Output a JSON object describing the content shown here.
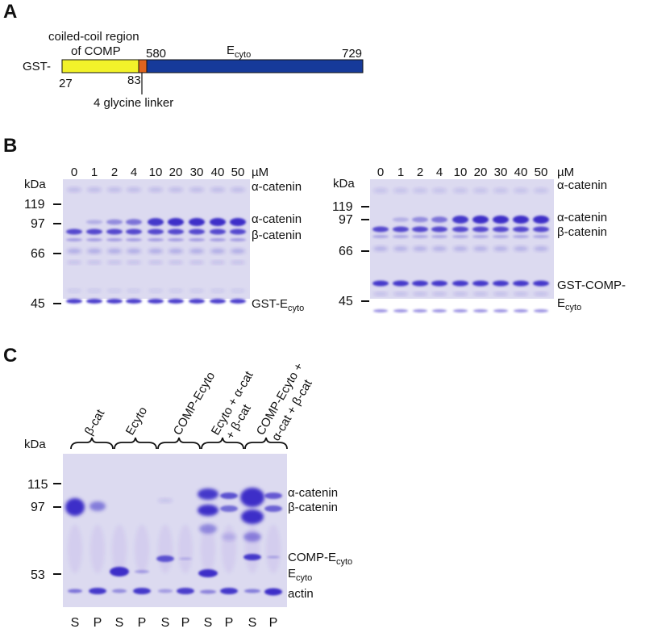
{
  "panel_a": {
    "label": "A",
    "gst": "GST-",
    "coiled_coil_line1": "coiled-coil region",
    "coiled_coil_line2": "of COMP",
    "ecyto_main": "E",
    "ecyto_sub": "cyto",
    "n580": "580",
    "n729": "729",
    "n27": "27",
    "n83": "83",
    "linker": "4 glycine linker",
    "colors": {
      "coiled_coil": "#f2f22a",
      "linker": "#e0641e",
      "ecyto": "#163a9a"
    }
  },
  "panel_b": {
    "label": "B",
    "kda": "kDa",
    "unit": "µM",
    "titrant": "α-catenin",
    "concentrations": [
      "0",
      "1",
      "2",
      "4",
      "10",
      "20",
      "30",
      "40",
      "50"
    ],
    "markers": [
      "119",
      "97",
      "66",
      "45"
    ],
    "alpha_label": "α-catenin",
    "beta_label": "β-catenin",
    "left_construct_main": "GST-E",
    "left_construct_sub": "cyto",
    "right_construct_line1": "GST-COMP-",
    "right_construct_main": "E",
    "right_construct_sub": "cyto",
    "alpha_band_intensity": [
      0.0,
      0.25,
      0.45,
      0.6,
      0.95,
      1.0,
      1.0,
      1.0,
      1.0
    ]
  },
  "panel_c": {
    "label": "C",
    "kda": "kDa",
    "markers": [
      "115",
      "97",
      "53"
    ],
    "groups": [
      {
        "line1": "β-cat",
        "line2": ""
      },
      {
        "line1": "Ecyto",
        "line2": ""
      },
      {
        "line1": "COMP-Ecyto",
        "line2": ""
      },
      {
        "line1": "Ecyto + α-cat",
        "line2": "+ β-cat"
      },
      {
        "line1": "COMP-Ecyto +",
        "line2": "α-cat + β-cat"
      }
    ],
    "lanes": [
      "S",
      "P",
      "S",
      "P",
      "S",
      "P",
      "S",
      "P",
      "S",
      "P"
    ],
    "right_labels": {
      "alpha": "α-catenin",
      "beta": "β-catenin",
      "comp_main": "COMP-E",
      "comp_sub": "cyto",
      "ecyto_main": "E",
      "ecyto_sub": "cyto",
      "actin": "actin"
    }
  },
  "colors": {
    "gel_bg": "#dcdaf0",
    "band": "#3c2ec8",
    "band_dark": "#2418b0"
  }
}
